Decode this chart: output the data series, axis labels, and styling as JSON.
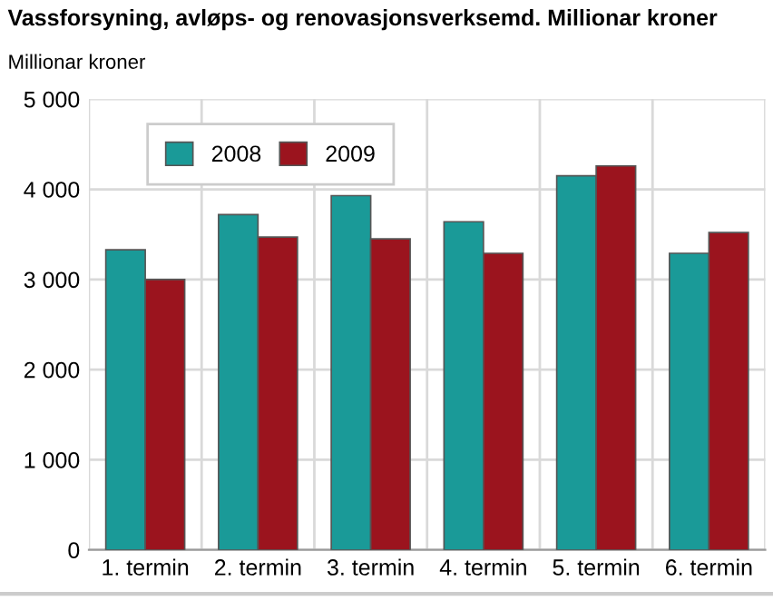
{
  "chart_data": {
    "type": "bar",
    "title": "Vassforsyning, avløps- og renovasjonsverksemd. Millionar kroner",
    "ylabel": "Millionar kroner",
    "categories": [
      "1. termin",
      "2. termin",
      "3. termin",
      "4. termin",
      "5. termin",
      "6. termin"
    ],
    "series": [
      {
        "name": "2008",
        "color": "#1a9a98",
        "values": [
          3330,
          3720,
          3930,
          3640,
          4150,
          3290
        ]
      },
      {
        "name": "2009",
        "color": "#9b141e",
        "values": [
          3000,
          3470,
          3450,
          3290,
          4260,
          3520
        ]
      }
    ],
    "ylim": [
      0,
      5000
    ],
    "yticks": [
      {
        "value": 0,
        "label": "0"
      },
      {
        "value": 1000,
        "label": "1 000"
      },
      {
        "value": 2000,
        "label": "2 000"
      },
      {
        "value": 3000,
        "label": "3 000"
      },
      {
        "value": 4000,
        "label": "4 000"
      },
      {
        "value": 5000,
        "label": "5 000"
      }
    ],
    "grid": true,
    "legend": "top left"
  }
}
